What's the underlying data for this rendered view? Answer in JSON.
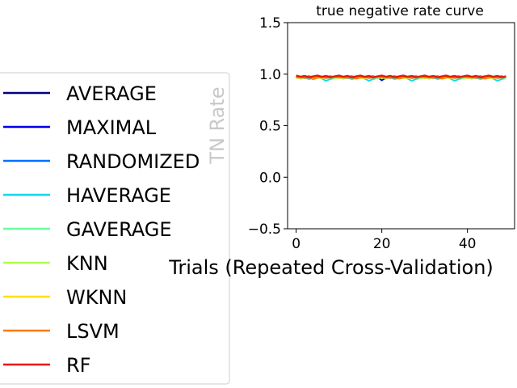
{
  "chart_data": {
    "type": "line",
    "title": "true negative rate curve",
    "xlabel": "Trials (Repeated Cross-Validation)",
    "ylabel": "TN Rate",
    "xlim": [
      -2,
      51
    ],
    "ylim": [
      -0.5,
      1.5
    ],
    "xticks": [
      0,
      20,
      40
    ],
    "xtick_labels": [
      "0",
      "20",
      "40"
    ],
    "yticks": [
      -0.5,
      0.0,
      0.5,
      1.0,
      1.5
    ],
    "ytick_labels": [
      "−0.5",
      "0.0",
      "0.5",
      "1.0",
      "1.5"
    ],
    "legend_position": "left",
    "grid": false,
    "series": [
      {
        "name": "AVERAGE",
        "color": "#00007f",
        "base": 0.975
      },
      {
        "name": "MAXIMAL",
        "color": "#0000ee",
        "base": 0.972,
        "dips": {
          "20": 0.94
        }
      },
      {
        "name": "RANDOMIZED",
        "color": "#0070ff",
        "base": 0.968
      },
      {
        "name": "HAVERAGE",
        "color": "#10d8f0",
        "base": 0.96,
        "dips": {
          "7": 0.935,
          "17": 0.935,
          "27": 0.935,
          "37": 0.935,
          "47": 0.935
        }
      },
      {
        "name": "GAVERAGE",
        "color": "#66ffa0",
        "base": 0.965
      },
      {
        "name": "KNN",
        "color": "#b0ff47",
        "base": 0.967
      },
      {
        "name": "WKNN",
        "color": "#ffe000",
        "base": 0.968
      },
      {
        "name": "LSVM",
        "color": "#ff7a00",
        "base": 0.97,
        "dips": {
          "4": 0.95,
          "14": 0.955,
          "24": 0.955,
          "34": 0.955,
          "44": 0.955
        }
      },
      {
        "name": "RF",
        "color": "#e81800",
        "base": 0.978
      }
    ],
    "x_count": 50
  }
}
